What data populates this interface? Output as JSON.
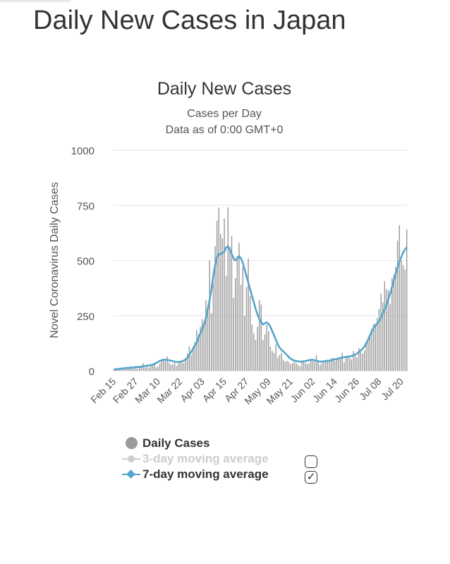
{
  "page": {
    "title": "Daily New Cases in Japan"
  },
  "chart_data": {
    "type": "bar",
    "title": "Daily New Cases",
    "subtitle_lines": [
      "Cases per Day",
      "Data as of 0:00 GMT+0"
    ],
    "xlabel": "",
    "ylabel": "Novel Coronavirus Daily Cases",
    "ylim": [
      0,
      1000
    ],
    "y_ticks": [
      0,
      250,
      500,
      750,
      1000
    ],
    "x_tick_labels": [
      "Feb 15",
      "Feb 27",
      "Mar 10",
      "Mar 22",
      "Apr 03",
      "Apr 15",
      "Apr 27",
      "May 09",
      "May 21",
      "Jun 02",
      "Jun 14",
      "Jun 26",
      "Jul 08",
      "Jul 20"
    ],
    "start_date": "Feb 15",
    "series": [
      {
        "name": "Daily Cases",
        "type": "bar",
        "values": [
          3,
          12,
          8,
          5,
          14,
          10,
          16,
          18,
          9,
          20,
          14,
          12,
          22,
          8,
          18,
          25,
          36,
          15,
          28,
          14,
          30,
          26,
          38,
          16,
          20,
          33,
          45,
          56,
          43,
          65,
          38,
          28,
          30,
          36,
          22,
          33,
          42,
          45,
          35,
          58,
          80,
          110,
          70,
          95,
          130,
          185,
          166,
          200,
          235,
          220,
          320,
          290,
          500,
          260,
          400,
          565,
          680,
          740,
          620,
          600,
          690,
          430,
          740,
          560,
          610,
          330,
          420,
          520,
          580,
          390,
          470,
          250,
          380,
          510,
          340,
          210,
          170,
          140,
          200,
          320,
          300,
          140,
          165,
          210,
          180,
          110,
          90,
          80,
          120,
          60,
          72,
          82,
          50,
          40,
          45,
          40,
          30,
          35,
          40,
          35,
          28,
          20,
          44,
          40,
          36,
          30,
          34,
          52,
          45,
          42,
          70,
          45,
          28,
          36,
          40,
          48,
          50,
          42,
          56,
          60,
          44,
          52,
          60,
          58,
          82,
          40,
          60,
          70,
          58,
          52,
          90,
          70,
          60,
          102,
          85,
          78,
          92,
          130,
          150,
          165,
          190,
          212,
          214,
          240,
          280,
          350,
          310,
          405,
          370,
          365,
          302,
          420,
          436,
          470,
          590,
          660,
          500,
          480,
          460,
          640
        ],
        "color": "#9a9a9a"
      },
      {
        "name": "3-day moving average",
        "type": "line",
        "visible": false,
        "values": [],
        "color": "#cccccc"
      },
      {
        "name": "7-day moving average",
        "type": "line",
        "visible": true,
        "values": [
          6,
          7,
          8,
          9,
          10,
          11,
          12,
          13,
          13,
          14,
          15,
          16,
          17,
          17,
          18,
          19,
          20,
          22,
          23,
          24,
          26,
          28,
          31,
          35,
          40,
          45,
          48,
          50,
          50,
          49,
          48,
          46,
          44,
          42,
          40,
          40,
          41,
          43,
          46,
          52,
          60,
          72,
          86,
          100,
          115,
          130,
          150,
          170,
          190,
          210,
          240,
          280,
          320,
          370,
          430,
          480,
          515,
          530,
          528,
          535,
          540,
          560,
          565,
          550,
          530,
          510,
          500,
          510,
          520,
          510,
          490,
          460,
          430,
          400,
          370,
          340,
          310,
          280,
          255,
          235,
          220,
          210,
          215,
          220,
          212,
          200,
          180,
          160,
          140,
          120,
          105,
          95,
          88,
          80,
          72,
          62,
          55,
          50,
          46,
          44,
          43,
          42,
          42,
          43,
          44,
          46,
          48,
          50,
          50,
          48,
          45,
          43,
          42,
          42,
          43,
          44,
          45,
          46,
          48,
          50,
          52,
          54,
          56,
          58,
          60,
          62,
          63,
          64,
          65,
          67,
          70,
          74,
          78,
          85,
          92,
          100,
          110,
          125,
          140,
          160,
          180,
          195,
          205,
          215,
          225,
          240,
          260,
          280,
          300,
          325,
          350,
          380,
          410,
          440,
          470,
          495,
          515,
          535,
          550,
          560
        ],
        "color": "#55a5cc"
      }
    ],
    "legend": {
      "position": "bottom",
      "items": [
        {
          "label": "Daily Cases",
          "visible": true
        },
        {
          "label": "3-day moving average",
          "visible": false,
          "checkbox": false
        },
        {
          "label": "7-day moving average",
          "visible": true,
          "checkbox": true
        }
      ]
    }
  }
}
